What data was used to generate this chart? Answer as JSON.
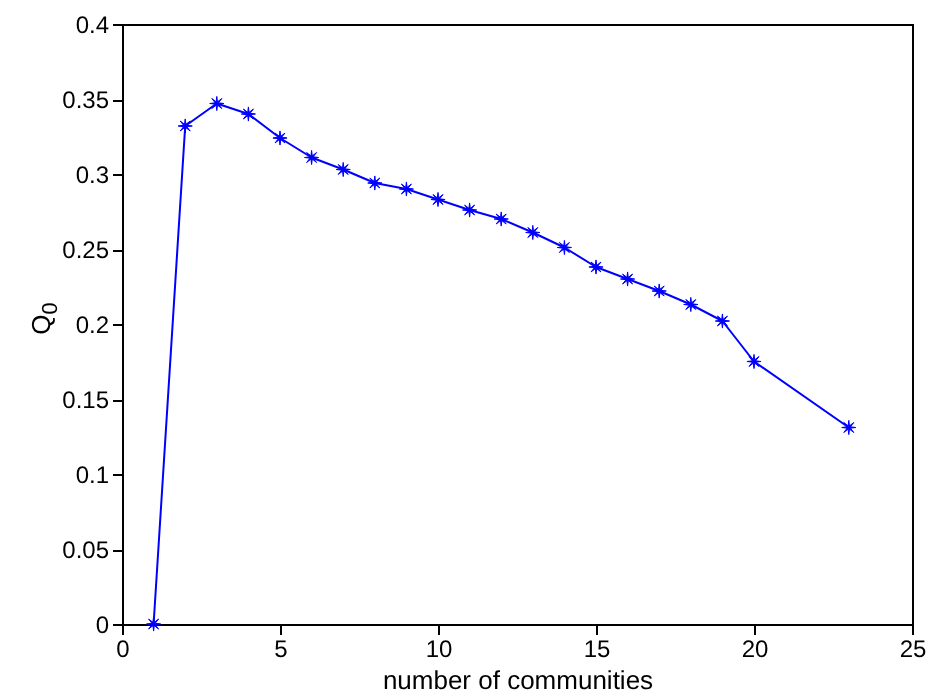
{
  "chart_data": {
    "type": "line",
    "xlabel": "number of communities",
    "ylabel": "Q$_{0}$",
    "x": [
      1,
      2,
      3,
      4,
      5,
      6,
      7,
      8,
      9,
      10,
      11,
      12,
      13,
      14,
      15,
      16,
      17,
      18,
      19,
      20,
      23
    ],
    "series": [
      {
        "color": "#0000ff",
        "values": [
          0,
          0.332,
          0.347,
          0.34,
          0.324,
          0.311,
          0.303,
          0.294,
          0.29,
          0.283,
          0.276,
          0.27,
          0.261,
          0.251,
          0.238,
          0.23,
          0.222,
          0.213,
          0.202,
          0.175,
          0.131
        ]
      }
    ],
    "xlim": [
      0,
      25
    ],
    "xticks": [
      0,
      5,
      10,
      15,
      20,
      25
    ],
    "ylim": [
      0,
      0.4
    ],
    "yticks": [
      0,
      0.05,
      0.1,
      0.15,
      0.2,
      0.25,
      0.3,
      0.35,
      0.4
    ],
    "grid": false,
    "marker": "star",
    "line_style": "solid"
  }
}
